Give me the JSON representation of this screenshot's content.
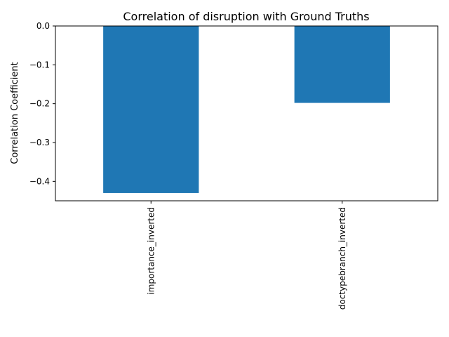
{
  "chart_data": {
    "type": "bar",
    "title": "Correlation of disruption with Ground Truths",
    "xlabel": "",
    "ylabel": "Correlation Coefficient",
    "categories": [
      "importance_inverted",
      "doctypebranch_inverted"
    ],
    "values": [
      -0.43,
      -0.198
    ],
    "ylim": [
      -0.45,
      0.0
    ],
    "yticks": [
      "0.0",
      "−0.1",
      "−0.2",
      "−0.3",
      "−0.4"
    ],
    "ytick_values": [
      0.0,
      -0.1,
      -0.2,
      -0.3,
      -0.4
    ],
    "bar_color": "#1f77b4",
    "grid": false,
    "legend": false
  }
}
